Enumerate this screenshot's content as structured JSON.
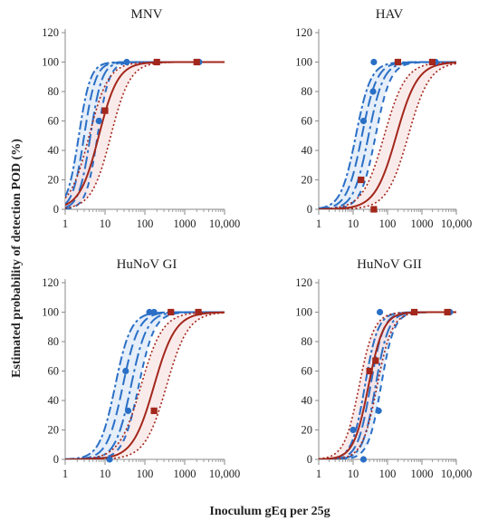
{
  "figure": {
    "ylabel": "Estimated probability of detection POD (%)",
    "xlabel": "Inoculum gEq per 25g"
  },
  "colors": {
    "blue": "#2a6fc6",
    "red": "#a3271b",
    "band_blue": "#cfe0f4",
    "band_red": "#f7dede",
    "axis": "#8a8a8a"
  },
  "chart_data": [
    {
      "type": "line",
      "title": "MNV",
      "xscale": "log",
      "xlim": [
        1,
        10000
      ],
      "ylim": [
        0,
        120
      ],
      "x_ticks": [
        "1",
        "10",
        "100",
        "1000",
        "10,000"
      ],
      "y_ticks": [
        "0",
        "20",
        "40",
        "60",
        "80",
        "100",
        "120"
      ],
      "blue_curves": [
        {
          "ed50": 2.2,
          "slope": 3.0
        },
        {
          "ed50": 3.0,
          "slope": 3.0
        },
        {
          "ed50": 4.3,
          "slope": 3.0
        },
        {
          "ed50": 6.5,
          "slope": 3.0
        }
      ],
      "red_curves": [
        {
          "ed50": 4.0,
          "slope": 1.8
        },
        {
          "ed50": 7.0,
          "slope": 1.8
        },
        {
          "ed50": 14.0,
          "slope": 1.8
        }
      ],
      "blue_points": [
        {
          "x": 7,
          "y": 60
        },
        {
          "x": 35,
          "y": 100
        },
        {
          "x": 200,
          "y": 100
        },
        {
          "x": 2000,
          "y": 100
        },
        {
          "x": 2300,
          "y": 100
        }
      ],
      "red_points": [
        {
          "x": 10,
          "y": 67
        },
        {
          "x": 200,
          "y": 100
        },
        {
          "x": 2000,
          "y": 100
        }
      ]
    },
    {
      "type": "line",
      "title": "HAV",
      "xscale": "log",
      "xlim": [
        1,
        10000
      ],
      "ylim": [
        0,
        120
      ],
      "x_ticks": [
        "1",
        "10",
        "100",
        "1000",
        "10,000"
      ],
      "y_ticks": [
        "0",
        "20",
        "40",
        "60",
        "80",
        "100",
        "120"
      ],
      "blue_curves": [
        {
          "ed50": 12,
          "slope": 2.0
        },
        {
          "ed50": 18,
          "slope": 2.0
        },
        {
          "ed50": 28,
          "slope": 2.0
        },
        {
          "ed50": 45,
          "slope": 2.0
        }
      ],
      "red_curves": [
        {
          "ed50": 80,
          "slope": 1.4
        },
        {
          "ed50": 180,
          "slope": 1.4
        },
        {
          "ed50": 400,
          "slope": 1.4
        }
      ],
      "blue_points": [
        {
          "x": 20,
          "y": 60
        },
        {
          "x": 38,
          "y": 80
        },
        {
          "x": 40,
          "y": 100
        },
        {
          "x": 200,
          "y": 100
        },
        {
          "x": 2500,
          "y": 100
        }
      ],
      "red_points": [
        {
          "x": 17,
          "y": 20
        },
        {
          "x": 40,
          "y": 0
        },
        {
          "x": 200,
          "y": 100
        },
        {
          "x": 2000,
          "y": 100
        }
      ]
    },
    {
      "type": "line",
      "title": "HuNoV GI",
      "xscale": "log",
      "xlim": [
        1,
        10000
      ],
      "ylim": [
        0,
        120
      ],
      "x_ticks": [
        "1",
        "10",
        "100",
        "1000",
        "10,000"
      ],
      "y_ticks": [
        "0",
        "20",
        "40",
        "60",
        "80",
        "100",
        "120"
      ],
      "blue_curves": [
        {
          "ed50": 18,
          "slope": 2.2
        },
        {
          "ed50": 28,
          "slope": 2.2
        },
        {
          "ed50": 45,
          "slope": 2.2
        },
        {
          "ed50": 70,
          "slope": 2.2
        }
      ],
      "red_curves": [
        {
          "ed50": 80,
          "slope": 1.6
        },
        {
          "ed50": 170,
          "slope": 1.6
        },
        {
          "ed50": 350,
          "slope": 1.6
        }
      ],
      "blue_points": [
        {
          "x": 13,
          "y": 0
        },
        {
          "x": 33,
          "y": 60
        },
        {
          "x": 38,
          "y": 33
        },
        {
          "x": 130,
          "y": 100
        },
        {
          "x": 170,
          "y": 100
        },
        {
          "x": 450,
          "y": 100
        },
        {
          "x": 2200,
          "y": 100
        }
      ],
      "red_points": [
        {
          "x": 170,
          "y": 33
        },
        {
          "x": 450,
          "y": 100
        },
        {
          "x": 2200,
          "y": 100
        }
      ]
    },
    {
      "type": "line",
      "title": "HuNoV GII",
      "xscale": "log",
      "xlim": [
        1,
        10000
      ],
      "ylim": [
        0,
        120
      ],
      "x_ticks": [
        "1",
        "10",
        "100",
        "1000",
        "10,000"
      ],
      "y_ticks": [
        "0",
        "20",
        "40",
        "60",
        "80",
        "100",
        "120"
      ],
      "blue_curves": [
        {
          "ed50": 22,
          "slope": 2.3
        },
        {
          "ed50": 32,
          "slope": 2.3
        },
        {
          "ed50": 45,
          "slope": 2.3
        },
        {
          "ed50": 65,
          "slope": 2.3
        }
      ],
      "red_curves": [
        {
          "ed50": 15,
          "slope": 2.0
        },
        {
          "ed50": 28,
          "slope": 2.0
        },
        {
          "ed50": 50,
          "slope": 2.0
        }
      ],
      "blue_points": [
        {
          "x": 10,
          "y": 20
        },
        {
          "x": 20,
          "y": 0
        },
        {
          "x": 55,
          "y": 33
        },
        {
          "x": 60,
          "y": 100
        },
        {
          "x": 600,
          "y": 100
        },
        {
          "x": 6000,
          "y": 100
        },
        {
          "x": 6500,
          "y": 100
        }
      ],
      "red_points": [
        {
          "x": 30,
          "y": 60
        },
        {
          "x": 45,
          "y": 67
        },
        {
          "x": 600,
          "y": 100
        },
        {
          "x": 5500,
          "y": 100
        }
      ]
    }
  ]
}
